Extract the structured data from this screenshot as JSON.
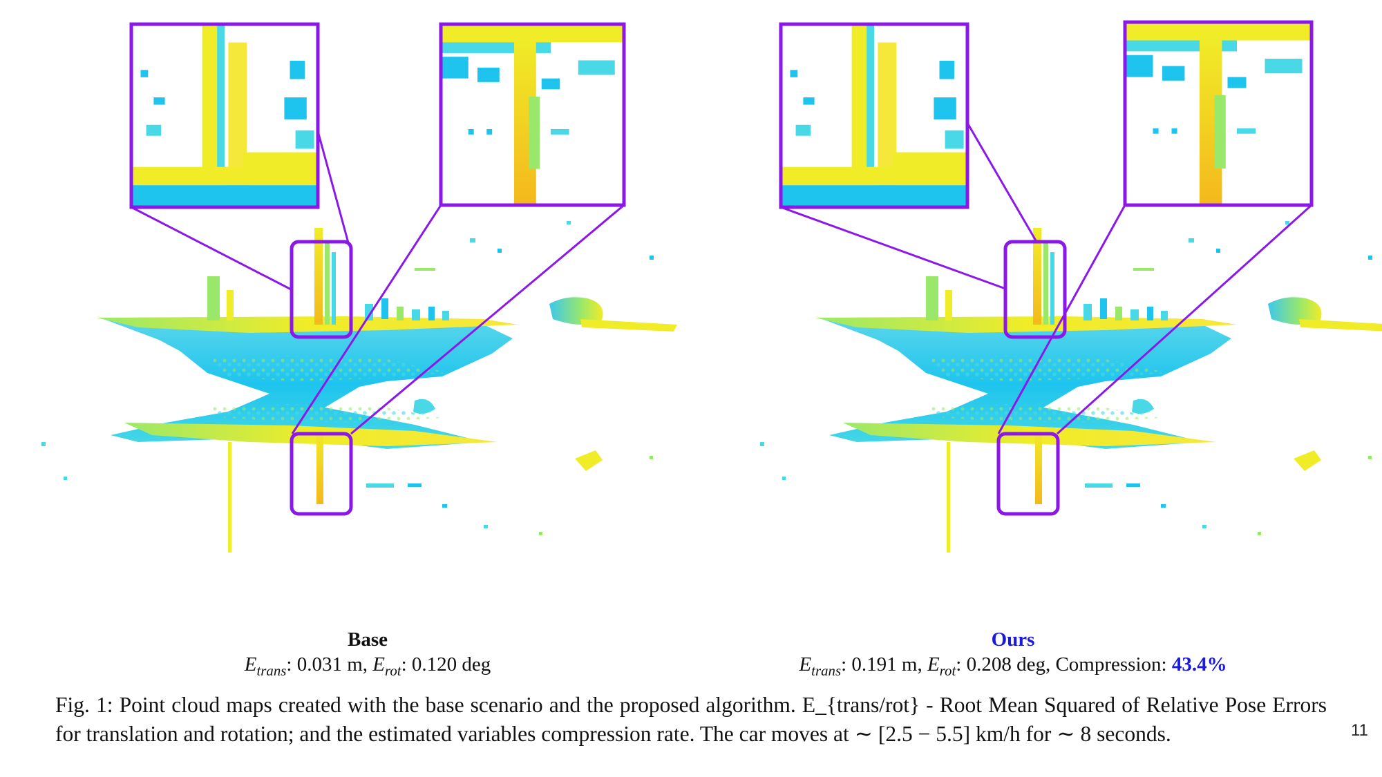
{
  "figure": {
    "panels": [
      {
        "id": "base",
        "title": "Base",
        "metrics": {
          "e_trans_symbol": "E",
          "e_trans_sub": "trans",
          "e_trans_value": ": 0.031 m, ",
          "e_rot_symbol": "E",
          "e_rot_sub": "rot",
          "e_rot_value": ": 0.120 deg"
        }
      },
      {
        "id": "ours",
        "title": "Ours",
        "metrics": {
          "e_trans_symbol": "E",
          "e_trans_sub": "trans",
          "e_trans_value": ": 0.191 m, ",
          "e_rot_symbol": "E",
          "e_rot_sub": "rot",
          "e_rot_value": ": 0.208 deg, Compression: ",
          "compression": "43.4%"
        }
      }
    ],
    "colors": {
      "inset_border": "#8a18e8",
      "cloud_blue": "#1ec4ee",
      "cloud_cyan": "#48d8e6",
      "cloud_green": "#9ae86a",
      "cloud_yellow": "#f0ec28",
      "cloud_orange": "#f4b81c",
      "title_ours": "#1a1adf"
    }
  },
  "caption": {
    "text": "Fig. 1: Point cloud maps created with the base scenario and the proposed algorithm. E_{trans/rot} - Root Mean Squared of Relative Pose Errors for translation and rotation; and the estimated variables compression rate. The car moves at ∼ [2.5 − 5.5] km/h for ∼ 8 seconds."
  },
  "page_number": "11"
}
